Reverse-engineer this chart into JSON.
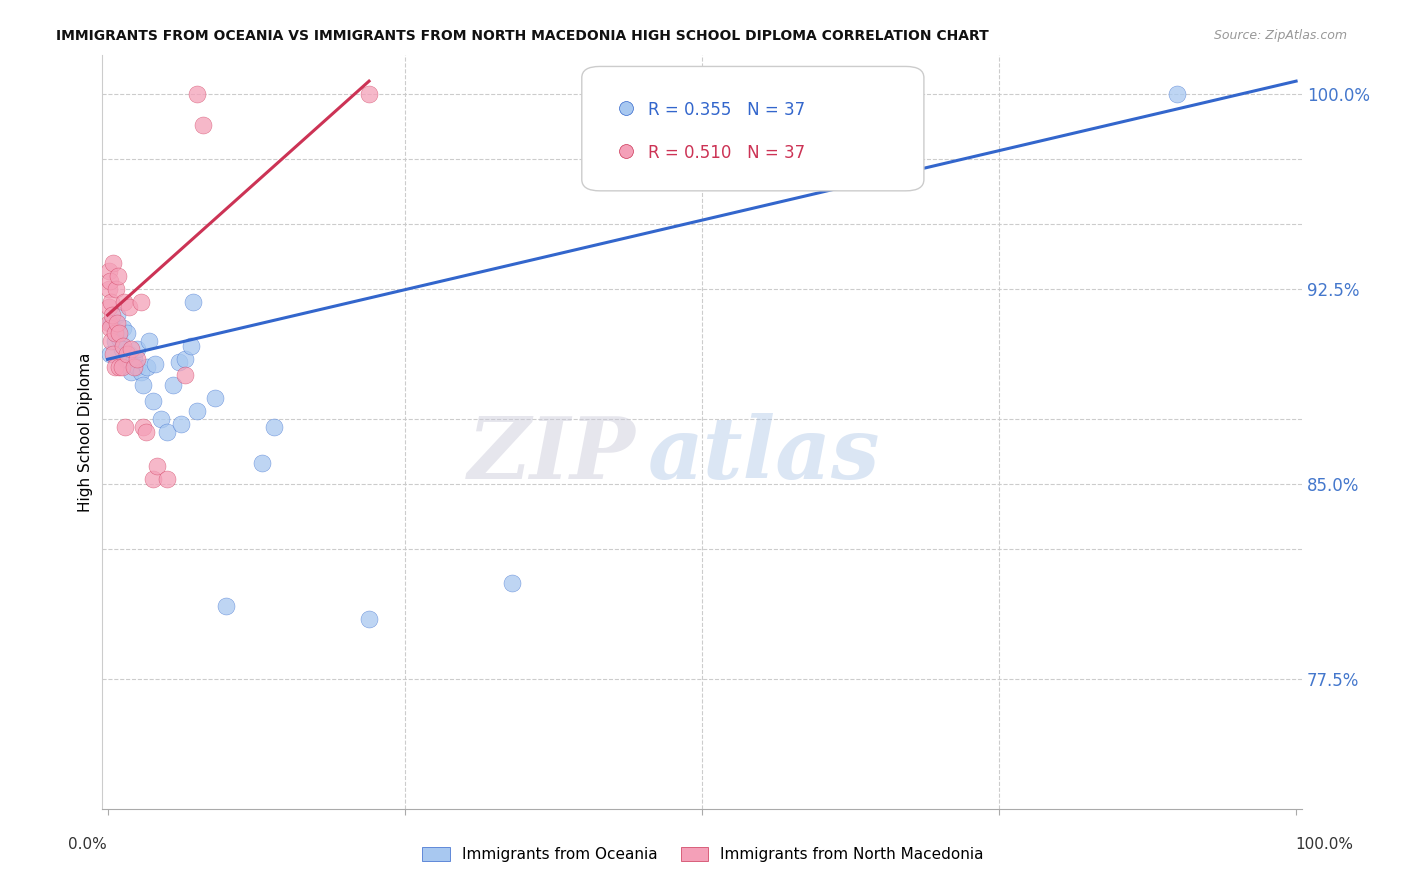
{
  "title": "IMMIGRANTS FROM OCEANIA VS IMMIGRANTS FROM NORTH MACEDONIA HIGH SCHOOL DIPLOMA CORRELATION CHART",
  "source": "Source: ZipAtlas.com",
  "ylabel": "High School Diploma",
  "blue_color": "#A8C8F0",
  "pink_color": "#F4A0B8",
  "blue_line_color": "#3366CC",
  "pink_line_color": "#CC3355",
  "watermark_zip": "ZIP",
  "watermark_atlas": "atlas",
  "ylim_low": 0.725,
  "ylim_high": 1.015,
  "xlim_low": -0.005,
  "xlim_high": 1.005,
  "ytick_vals": [
    0.775,
    0.825,
    0.85,
    0.875,
    0.925,
    0.95,
    0.975,
    1.0
  ],
  "ytick_labeled": {
    "0.775": "77.5%",
    "0.850": "85.0%",
    "0.925": "92.5%",
    "1.000": "100.0%"
  },
  "blue_line_x0": 0.0,
  "blue_line_y0": 0.898,
  "blue_line_x1": 1.0,
  "blue_line_y1": 1.005,
  "pink_line_x0": 0.0,
  "pink_line_y0": 0.915,
  "pink_line_x1": 0.22,
  "pink_line_y1": 1.005,
  "blue_x": [
    0.002,
    0.003,
    0.006,
    0.008,
    0.01,
    0.012,
    0.013,
    0.015,
    0.016,
    0.018,
    0.02,
    0.022,
    0.025,
    0.025,
    0.028,
    0.03,
    0.033,
    0.035,
    0.038,
    0.04,
    0.045,
    0.05,
    0.055,
    0.06,
    0.062,
    0.065,
    0.07,
    0.072,
    0.075,
    0.09,
    0.1,
    0.13,
    0.14,
    0.22,
    0.34,
    0.66,
    0.9
  ],
  "blue_y": [
    0.9,
    0.912,
    0.905,
    0.915,
    0.906,
    0.902,
    0.91,
    0.898,
    0.908,
    0.9,
    0.893,
    0.898,
    0.895,
    0.902,
    0.893,
    0.888,
    0.895,
    0.905,
    0.882,
    0.896,
    0.875,
    0.87,
    0.888,
    0.897,
    0.873,
    0.898,
    0.903,
    0.92,
    0.878,
    0.883,
    0.803,
    0.858,
    0.872,
    0.798,
    0.812,
    0.99,
    1.0
  ],
  "pink_x": [
    0.001,
    0.001,
    0.001,
    0.001,
    0.002,
    0.002,
    0.003,
    0.003,
    0.004,
    0.005,
    0.005,
    0.006,
    0.006,
    0.007,
    0.008,
    0.009,
    0.01,
    0.01,
    0.012,
    0.013,
    0.014,
    0.015,
    0.016,
    0.018,
    0.02,
    0.022,
    0.025,
    0.028,
    0.03,
    0.032,
    0.038,
    0.042,
    0.05,
    0.065,
    0.075,
    0.08,
    0.22
  ],
  "pink_y": [
    0.912,
    0.918,
    0.925,
    0.932,
    0.91,
    0.928,
    0.905,
    0.92,
    0.915,
    0.9,
    0.935,
    0.895,
    0.908,
    0.925,
    0.912,
    0.93,
    0.895,
    0.908,
    0.895,
    0.903,
    0.92,
    0.872,
    0.9,
    0.918,
    0.902,
    0.895,
    0.898,
    0.92,
    0.872,
    0.87,
    0.852,
    0.857,
    0.852,
    0.892,
    1.0,
    0.988,
    1.0
  ],
  "legend_r1_val": "0.355",
  "legend_n1_val": "37",
  "legend_r2_val": "0.510",
  "legend_n2_val": "37"
}
